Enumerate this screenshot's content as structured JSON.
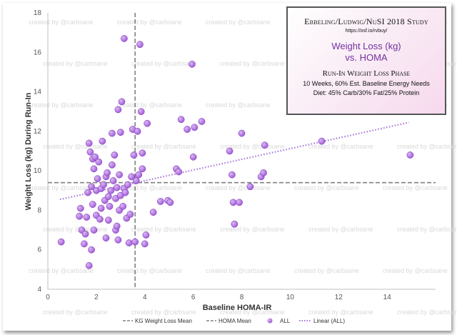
{
  "info_box": {
    "title": "Ebbeling/Ludwig/NuSI 2018 Study",
    "link": "https://osf.io/rvbuy/",
    "subtitle_line1": "Weight Loss (kg)",
    "subtitle_line2": "vs. HOMA",
    "phase": "Run-In Weight Loss Phase",
    "line1": "10 Weeks, 60% Est. Baseline Energy Needs",
    "line2": "Diet:  45% Carb/30% Fat/25% Protein"
  },
  "watermark": "created by @carbsane",
  "colors": {
    "marker": "#9b4fd6",
    "marker_light": "#d9b8f2",
    "trendline": "#a774d9",
    "mean_line": "#808080"
  },
  "chart_data": {
    "type": "scatter",
    "xlabel": "Baseline HOMA-IR",
    "ylabel": "Weight Loss (kg) During Run-In",
    "xlim": [
      0,
      16
    ],
    "ylim": [
      4,
      18
    ],
    "xticks": [
      0,
      2,
      4,
      6,
      8,
      10,
      12,
      14
    ],
    "yticks": [
      4,
      6,
      8,
      10,
      12,
      14,
      16,
      18
    ],
    "grid": false,
    "legend_position": "bottom",
    "legend": [
      "KG Weight Loss Mean",
      "HOMA Mean",
      "ALL",
      "Linear (ALL)"
    ],
    "weight_loss_mean": 9.4,
    "homa_mean": 3.6,
    "trendline": {
      "x": [
        0.5,
        14.9
      ],
      "y": [
        8.55,
        12.45
      ]
    },
    "series": [
      {
        "name": "ALL",
        "points": [
          [
            0.55,
            6.4
          ],
          [
            1.3,
            7.7
          ],
          [
            1.35,
            8.1
          ],
          [
            1.4,
            7.0
          ],
          [
            1.5,
            6.3
          ],
          [
            1.55,
            6.8
          ],
          [
            1.6,
            7.65
          ],
          [
            1.65,
            8.9
          ],
          [
            1.7,
            5.2
          ],
          [
            1.7,
            11.4
          ],
          [
            1.75,
            10.95
          ],
          [
            1.8,
            6.0
          ],
          [
            1.8,
            9.2
          ],
          [
            1.85,
            10.6
          ],
          [
            1.85,
            8.3
          ],
          [
            1.9,
            7.0
          ],
          [
            1.9,
            10.1
          ],
          [
            1.95,
            10.7
          ],
          [
            2.0,
            9.0
          ],
          [
            2.0,
            7.75
          ],
          [
            2.05,
            9.6
          ],
          [
            2.1,
            10.45
          ],
          [
            2.15,
            7.55
          ],
          [
            2.2,
            9.1
          ],
          [
            2.2,
            8.1
          ],
          [
            2.25,
            11.5
          ],
          [
            2.3,
            9.3
          ],
          [
            2.35,
            8.5
          ],
          [
            2.4,
            9.7
          ],
          [
            2.4,
            6.6
          ],
          [
            2.45,
            9.9
          ],
          [
            2.5,
            8.7
          ],
          [
            2.5,
            7.5
          ],
          [
            2.55,
            8.2
          ],
          [
            2.6,
            9.0
          ],
          [
            2.65,
            10.3
          ],
          [
            2.65,
            11.9
          ],
          [
            2.7,
            9.5
          ],
          [
            2.75,
            10.8
          ],
          [
            2.8,
            7.0
          ],
          [
            2.8,
            8.6
          ],
          [
            2.85,
            7.2
          ],
          [
            2.85,
            9.15
          ],
          [
            2.9,
            6.5
          ],
          [
            2.9,
            13.1
          ],
          [
            2.95,
            9.8
          ],
          [
            2.95,
            8.0
          ],
          [
            3.0,
            11.95
          ],
          [
            3.0,
            8.75
          ],
          [
            3.05,
            13.5
          ],
          [
            3.1,
            8.2
          ],
          [
            3.15,
            9.1
          ],
          [
            3.15,
            16.7
          ],
          [
            3.2,
            8.9
          ],
          [
            3.25,
            7.6
          ],
          [
            3.3,
            9.3
          ],
          [
            3.35,
            6.35
          ],
          [
            3.4,
            7.8
          ],
          [
            3.45,
            9.7
          ],
          [
            3.5,
            12.1
          ],
          [
            3.55,
            10.8
          ],
          [
            3.6,
            6.4
          ],
          [
            3.65,
            9.5
          ],
          [
            3.7,
            12.0
          ],
          [
            3.75,
            9.8
          ],
          [
            3.8,
            16.4
          ],
          [
            3.85,
            13.0
          ],
          [
            3.9,
            10.9
          ],
          [
            3.9,
            10.1
          ],
          [
            4.0,
            6.3
          ],
          [
            4.05,
            6.75
          ],
          [
            4.1,
            12.4
          ],
          [
            4.35,
            7.9
          ],
          [
            4.65,
            8.45
          ],
          [
            4.95,
            8.5
          ],
          [
            5.05,
            8.4
          ],
          [
            5.3,
            10.1
          ],
          [
            5.4,
            9.95
          ],
          [
            5.5,
            12.6
          ],
          [
            5.75,
            12.1
          ],
          [
            5.95,
            15.4
          ],
          [
            6.0,
            10.7
          ],
          [
            6.05,
            12.2
          ],
          [
            6.35,
            12.5
          ],
          [
            7.5,
            11.0
          ],
          [
            7.6,
            9.8
          ],
          [
            7.65,
            8.4
          ],
          [
            7.7,
            7.3
          ],
          [
            7.9,
            8.4
          ],
          [
            8.0,
            11.9
          ],
          [
            8.35,
            9.2
          ],
          [
            8.8,
            9.7
          ],
          [
            8.9,
            9.9
          ],
          [
            8.95,
            11.3
          ],
          [
            11.3,
            11.5
          ],
          [
            14.95,
            10.8
          ]
        ]
      }
    ]
  }
}
